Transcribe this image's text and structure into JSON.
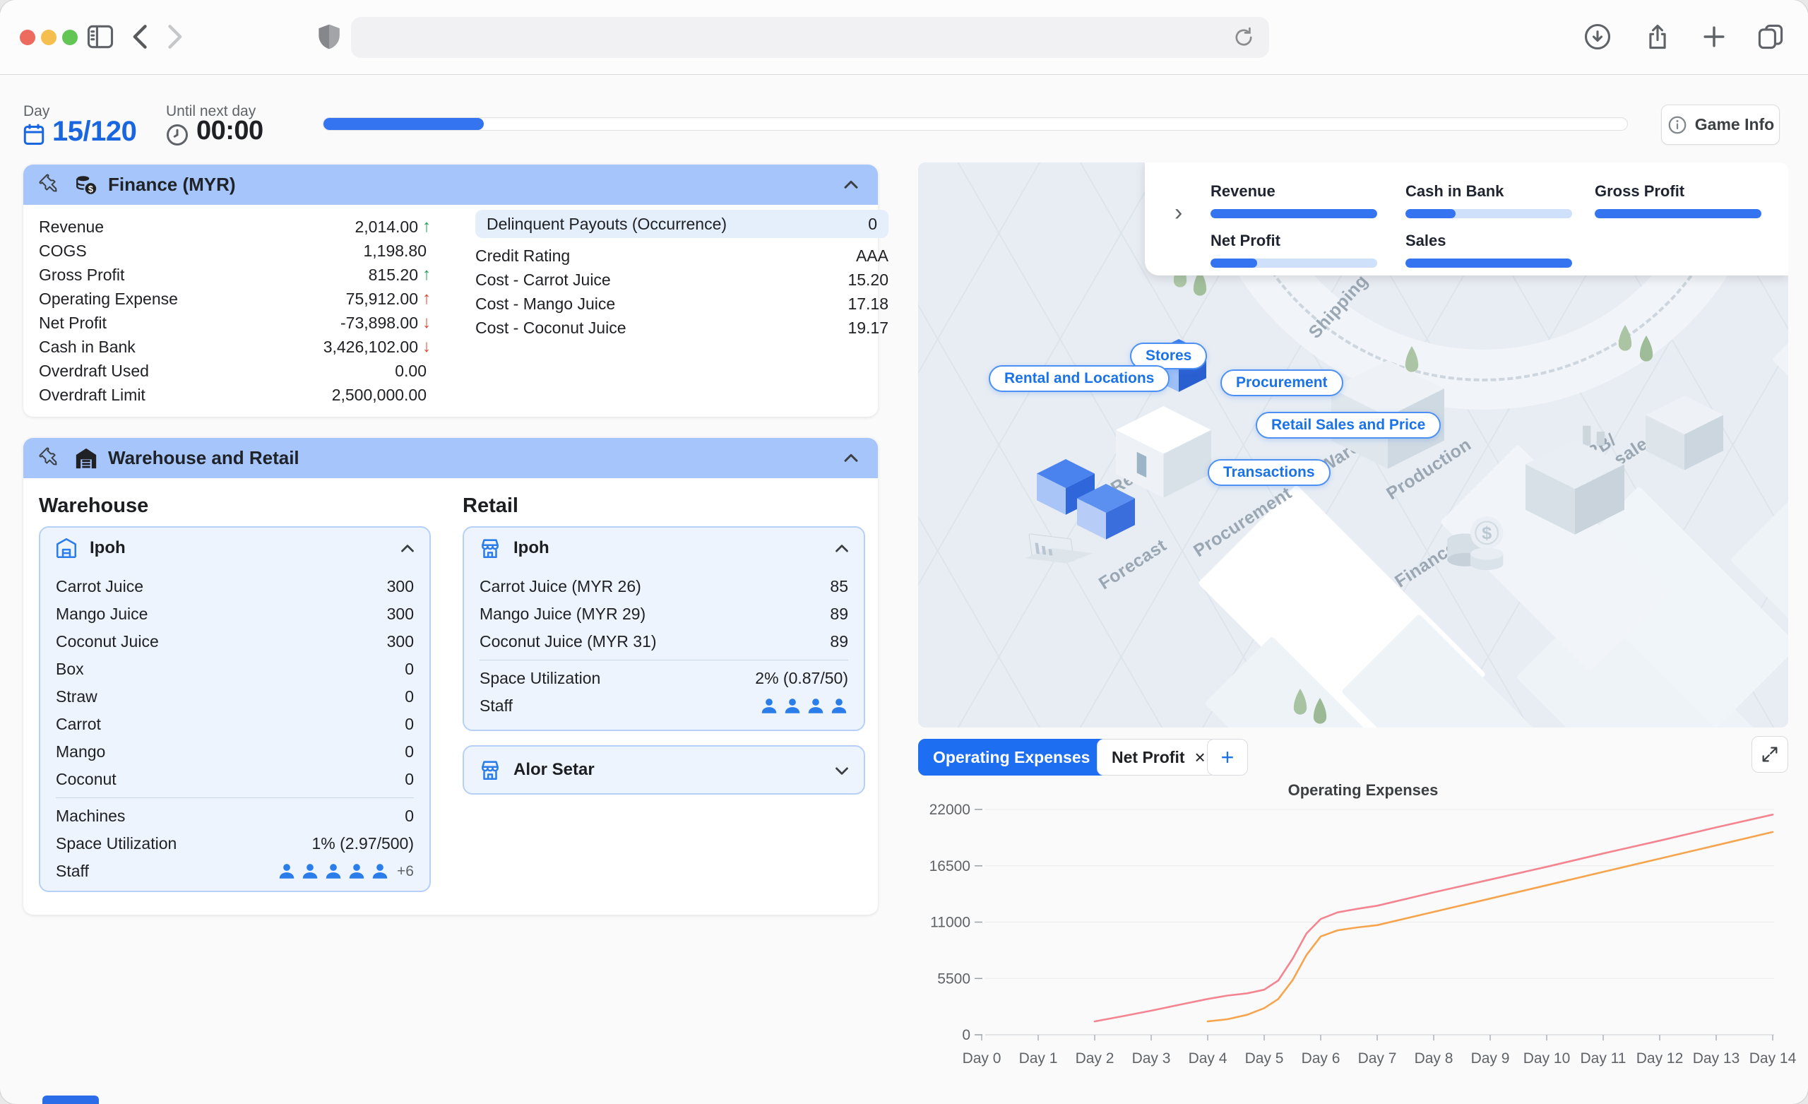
{
  "browser": {
    "url": ""
  },
  "header": {
    "day_label": "Day",
    "day_value": "15/120",
    "until_label": "Until next day",
    "until_value": "00:00",
    "progress_pct": 12.3,
    "game_info_label": "Game Info"
  },
  "finance": {
    "title": "Finance (MYR)",
    "rows": [
      {
        "label": "Revenue",
        "value": "2,014.00",
        "arrow": "↑",
        "trend": "up-good"
      },
      {
        "label": "COGS",
        "value": "1,198.80",
        "arrow": "",
        "trend": ""
      },
      {
        "label": "Gross Profit",
        "value": "815.20",
        "arrow": "↑",
        "trend": "up-good"
      },
      {
        "label": "Operating Expense",
        "value": "75,912.00",
        "arrow": "↑",
        "trend": "up-bad"
      },
      {
        "label": "Net Profit",
        "value": "-73,898.00",
        "arrow": "↓",
        "trend": "down-bad"
      },
      {
        "label": "Cash in Bank",
        "value": "3,426,102.00",
        "arrow": "↓",
        "trend": "down-bad"
      },
      {
        "label": "Overdraft Used",
        "value": "0.00",
        "arrow": "",
        "trend": ""
      },
      {
        "label": "Overdraft Limit",
        "value": "2,500,000.00",
        "arrow": "",
        "trend": ""
      }
    ],
    "right_rows": [
      {
        "label": "Delinquent Payouts (Occurrence)",
        "value": "0"
      },
      {
        "label": "Credit Rating",
        "value": "AAA"
      },
      {
        "label": "Cost - Carrot Juice",
        "value": "15.20"
      },
      {
        "label": "Cost - Mango Juice",
        "value": "17.18"
      },
      {
        "label": "Cost - Coconut Juice",
        "value": "19.17"
      }
    ]
  },
  "warehouse_retail": {
    "title": "Warehouse and Retail",
    "warehouse_heading": "Warehouse",
    "retail_heading": "Retail",
    "warehouse_card": {
      "name": "Ipoh",
      "items": [
        {
          "label": "Carrot Juice",
          "value": "300"
        },
        {
          "label": "Mango Juice",
          "value": "300"
        },
        {
          "label": "Coconut Juice",
          "value": "300"
        },
        {
          "label": "Box",
          "value": "0"
        },
        {
          "label": "Straw",
          "value": "0"
        },
        {
          "label": "Carrot",
          "value": "0"
        },
        {
          "label": "Mango",
          "value": "0"
        },
        {
          "label": "Coconut",
          "value": "0"
        }
      ],
      "machines_label": "Machines",
      "machines_value": "0",
      "space_label": "Space Utilization",
      "space_value": "1% (2.97/500)",
      "staff_label": "Staff",
      "staff_count": 5,
      "staff_extra": "+6"
    },
    "retail_card": {
      "name": "Ipoh",
      "items": [
        {
          "label": "Carrot Juice (MYR 26)",
          "value": "85"
        },
        {
          "label": "Mango Juice (MYR 29)",
          "value": "89"
        },
        {
          "label": "Coconut Juice (MYR 31)",
          "value": "89"
        }
      ],
      "space_label": "Space Utilization",
      "space_value": "2% (0.87/50)",
      "staff_label": "Staff",
      "staff_count": 4
    },
    "retail_card_collapsed": {
      "name": "Alor Setar"
    }
  },
  "map": {
    "panel_chevron": "›",
    "kpis": [
      {
        "label": "Revenue",
        "fill": 100
      },
      {
        "label": "Cash in Bank",
        "fill": 30
      },
      {
        "label": "Gross Profit",
        "fill": 100
      },
      {
        "label": "Net Profit",
        "fill": 28
      },
      {
        "label": "Sales",
        "fill": 100
      }
    ],
    "pills": [
      {
        "label": "Stores"
      },
      {
        "label": "Procurement"
      },
      {
        "label": "Rental and Locations"
      },
      {
        "label": "Retail Sales and Price"
      },
      {
        "label": "Transactions"
      }
    ],
    "ground": {
      "shipping": "Shipping",
      "retail": "Retail",
      "procurement": "Procurement",
      "forecast": "Forecast",
      "finance": "Finance",
      "production": "Production",
      "b2b": "B2B/\nWholesale",
      "warehouse": "Warehouse"
    }
  },
  "chart_tags": {
    "tags": [
      {
        "label": "Operating Expenses",
        "close_glyph": "×",
        "active": true
      },
      {
        "label": "Net Profit",
        "close_glyph": "×",
        "active": false
      }
    ],
    "add_label": "+"
  },
  "chart_data": {
    "type": "line",
    "title": "Operating Expenses",
    "xlabel": "",
    "ylabel": "",
    "grid": true,
    "legend_position": "none",
    "xlim": [
      0,
      14
    ],
    "ylim": [
      0,
      22000
    ],
    "y_ticks": [
      0,
      5500,
      11000,
      16500,
      22000
    ],
    "x_labels": [
      "Day 0",
      "Day 1",
      "Day 2",
      "Day 3",
      "Day 4",
      "Day 5",
      "Day 6",
      "Day 7",
      "Day 8",
      "Day 9",
      "Day 10",
      "Day 11",
      "Day 12",
      "Day 13",
      "Day 14"
    ],
    "series": [
      {
        "name": "series-pink",
        "color": "#F4848F",
        "points": [
          [
            2,
            1300
          ],
          [
            2.5,
            1820
          ],
          [
            3,
            2350
          ],
          [
            3.5,
            2930
          ],
          [
            4,
            3500
          ],
          [
            4.35,
            3830
          ],
          [
            4.7,
            4050
          ],
          [
            5,
            4400
          ],
          [
            5.25,
            5300
          ],
          [
            5.5,
            7400
          ],
          [
            5.75,
            9900
          ],
          [
            6,
            11300
          ],
          [
            6.3,
            11950
          ],
          [
            6.65,
            12300
          ],
          [
            7,
            12600
          ],
          [
            8,
            13900
          ],
          [
            9,
            15150
          ],
          [
            10,
            16400
          ],
          [
            11,
            17700
          ],
          [
            12,
            18950
          ],
          [
            13,
            20250
          ],
          [
            14,
            21500
          ]
        ]
      },
      {
        "name": "series-orange",
        "color": "#F6A44E",
        "points": [
          [
            4,
            1300
          ],
          [
            4.35,
            1520
          ],
          [
            4.7,
            1950
          ],
          [
            5,
            2600
          ],
          [
            5.25,
            3500
          ],
          [
            5.5,
            5300
          ],
          [
            5.75,
            7800
          ],
          [
            6,
            9600
          ],
          [
            6.3,
            10200
          ],
          [
            6.65,
            10480
          ],
          [
            7,
            10700
          ],
          [
            8,
            12000
          ],
          [
            9,
            13300
          ],
          [
            10,
            14600
          ],
          [
            11,
            15900
          ],
          [
            12,
            17200
          ],
          [
            13,
            18500
          ],
          [
            14,
            19800
          ]
        ]
      }
    ]
  }
}
